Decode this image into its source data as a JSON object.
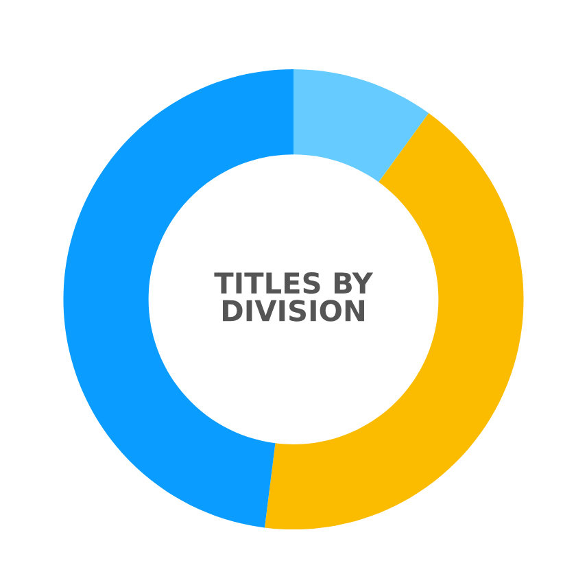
{
  "chart_data": {
    "type": "donut",
    "title": "TITLES BY\nDIVISION",
    "categories": [
      null,
      null,
      null
    ],
    "values": [
      10,
      42,
      48
    ],
    "colors": [
      "#66ccff",
      "#fbbc00",
      "#0a9cff"
    ]
  }
}
